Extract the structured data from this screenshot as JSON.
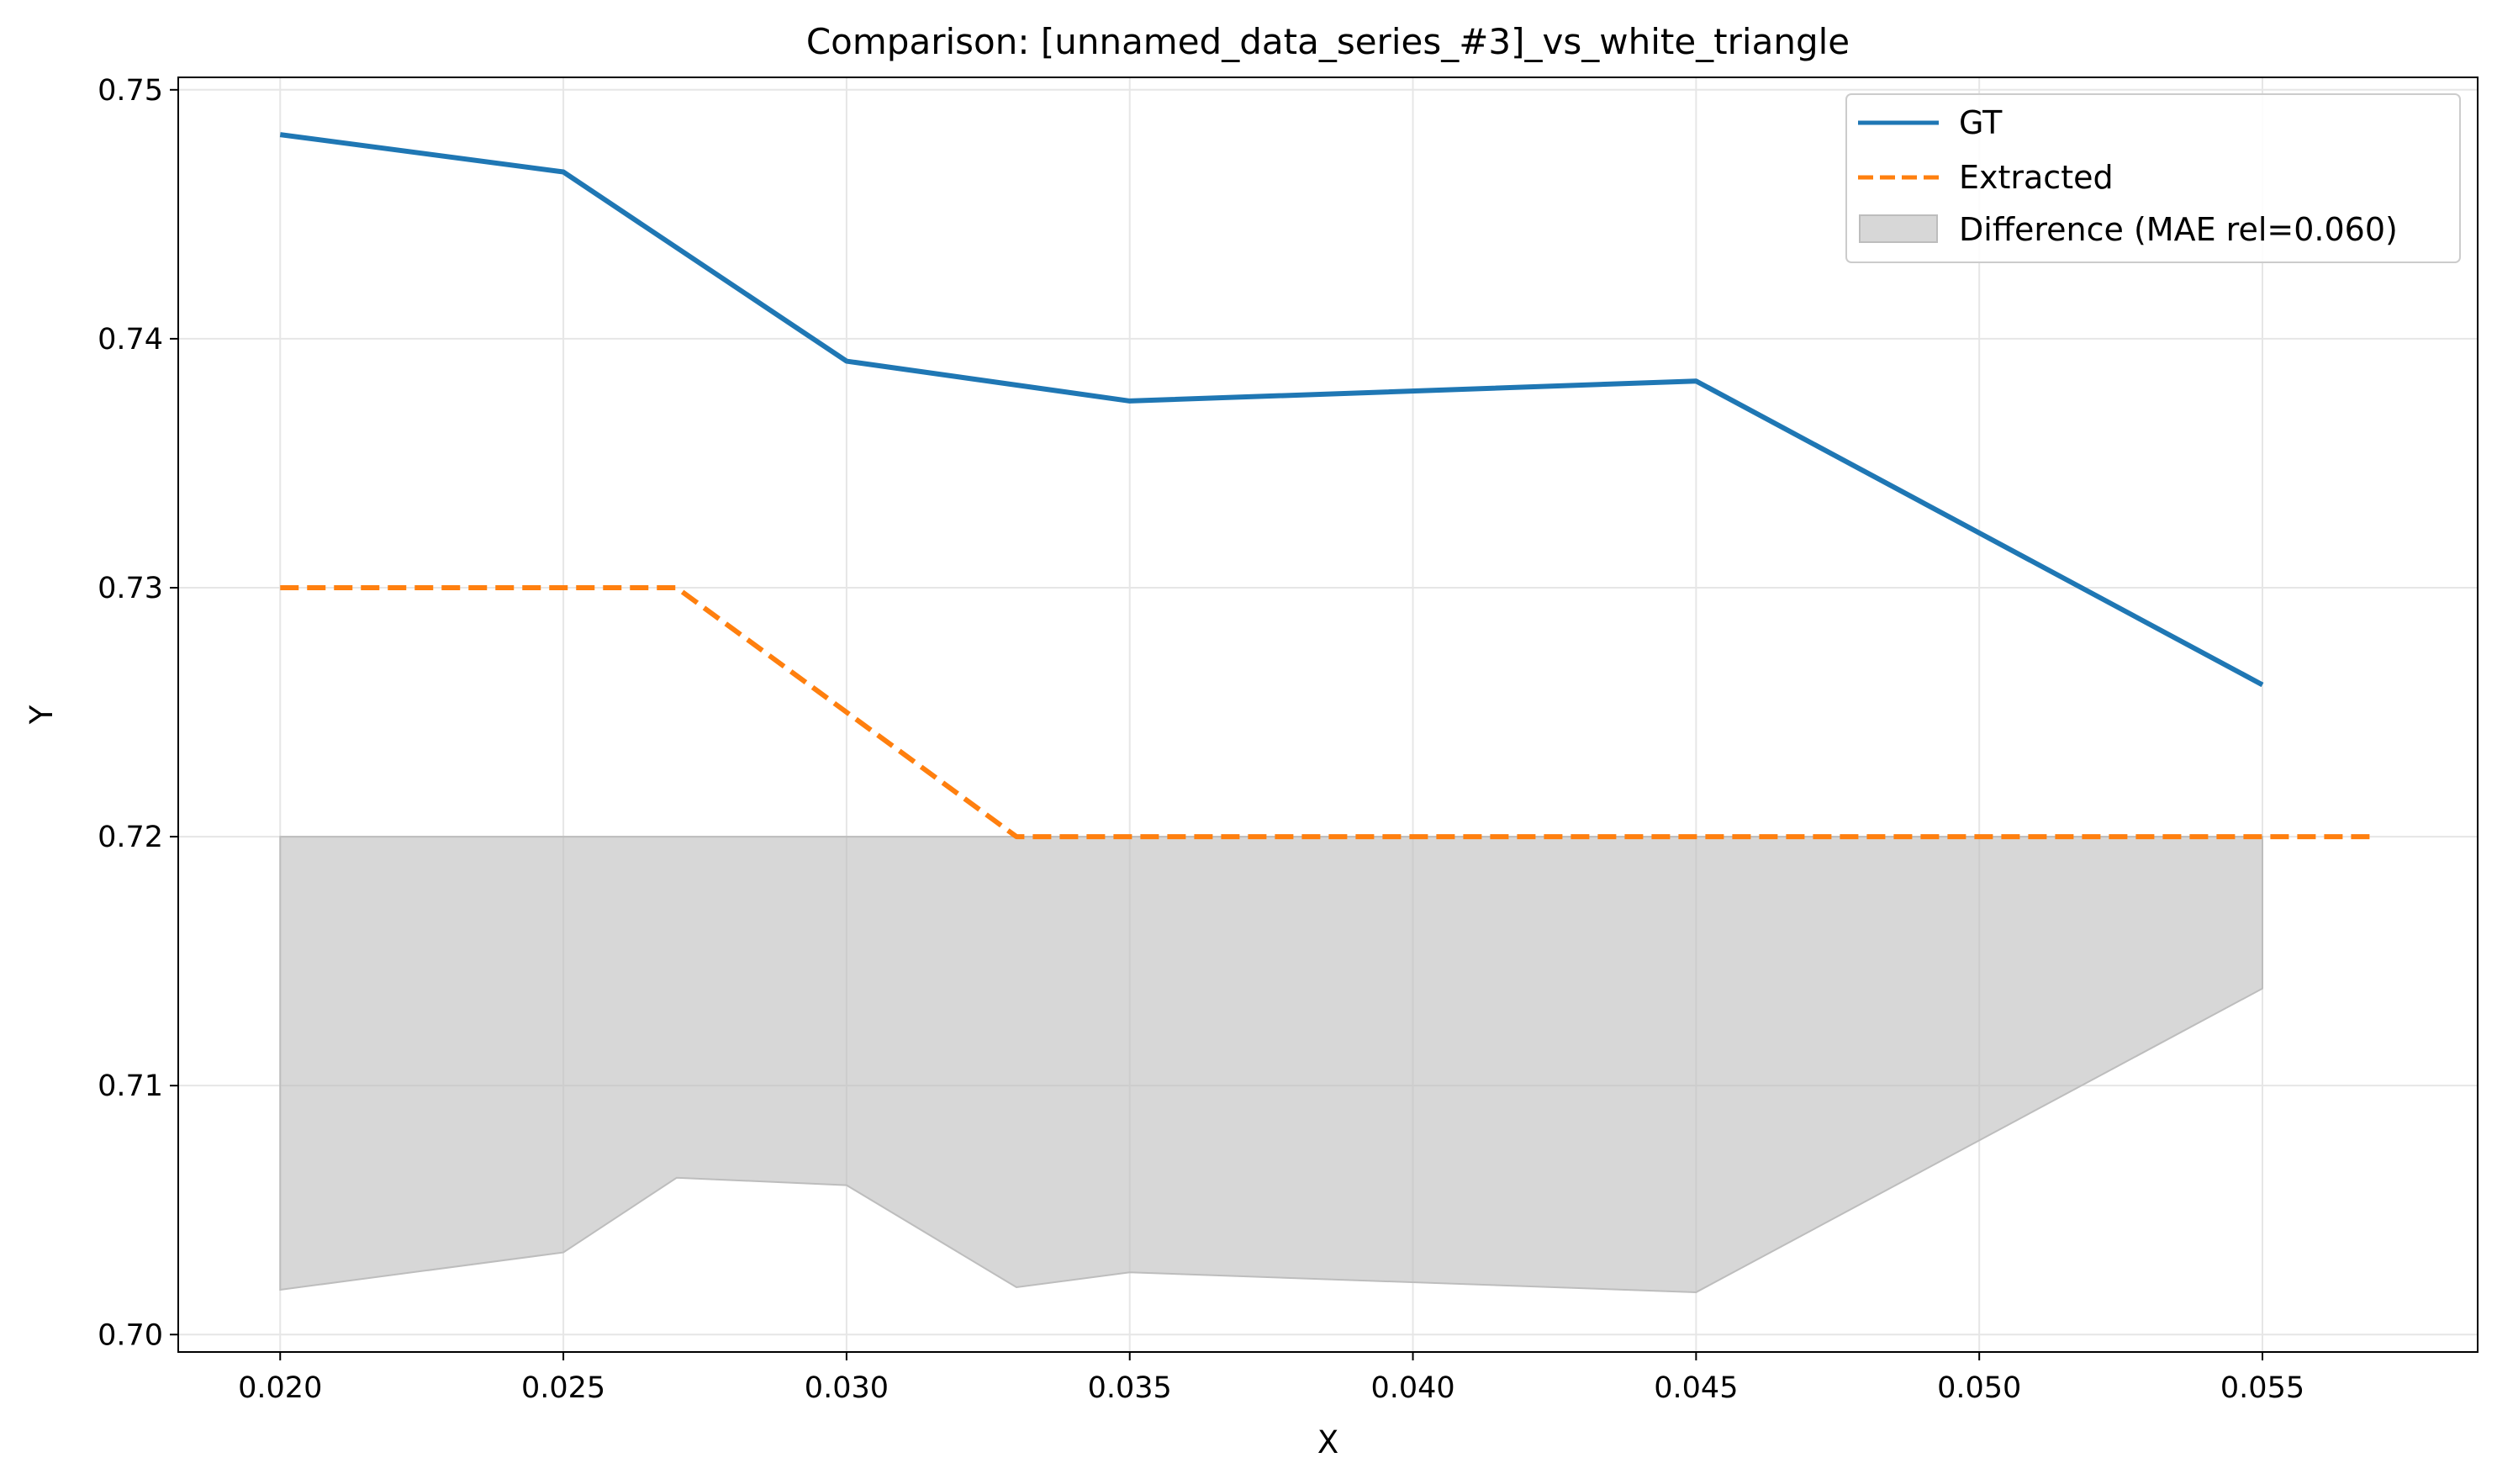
{
  "chart_data": {
    "type": "line",
    "title": "Comparison: [unnamed_data_series_#3]_vs_white_triangle",
    "xlabel": "X",
    "ylabel": "Y",
    "xlim": [
      0.0182,
      0.0588
    ],
    "ylim": [
      0.6993,
      0.7505
    ],
    "xticks": [
      "0.020",
      "0.025",
      "0.030",
      "0.035",
      "0.040",
      "0.045",
      "0.050",
      "0.055"
    ],
    "yticks": [
      "0.70",
      "0.71",
      "0.72",
      "0.73",
      "0.74",
      "0.75"
    ],
    "grid": true,
    "legend_position": "top-right",
    "series": [
      {
        "name": "GT",
        "style": "solid",
        "color": "#1f77b4",
        "x": [
          0.02,
          0.025,
          0.03,
          0.035,
          0.045,
          0.055
        ],
        "y": [
          0.7482,
          0.7467,
          0.7391,
          0.7375,
          0.7383,
          0.7261
        ]
      },
      {
        "name": "Extracted",
        "style": "dashed",
        "color": "#ff7f0e",
        "x": [
          0.02,
          0.027,
          0.033,
          0.057
        ],
        "y": [
          0.73,
          0.73,
          0.72,
          0.72
        ]
      }
    ],
    "difference": {
      "name": "Difference (MAE rel=0.060)",
      "color": "#bdbdbd",
      "x": [
        0.02,
        0.025,
        0.027,
        0.03,
        0.033,
        0.035,
        0.045,
        0.055
      ],
      "upper": [
        0.72,
        0.72,
        0.72,
        0.72,
        0.72,
        0.72,
        0.72,
        0.72
      ],
      "lower": [
        0.7018,
        0.7033,
        0.7063,
        0.706,
        0.7019,
        0.7025,
        0.7017,
        0.7139
      ]
    }
  }
}
